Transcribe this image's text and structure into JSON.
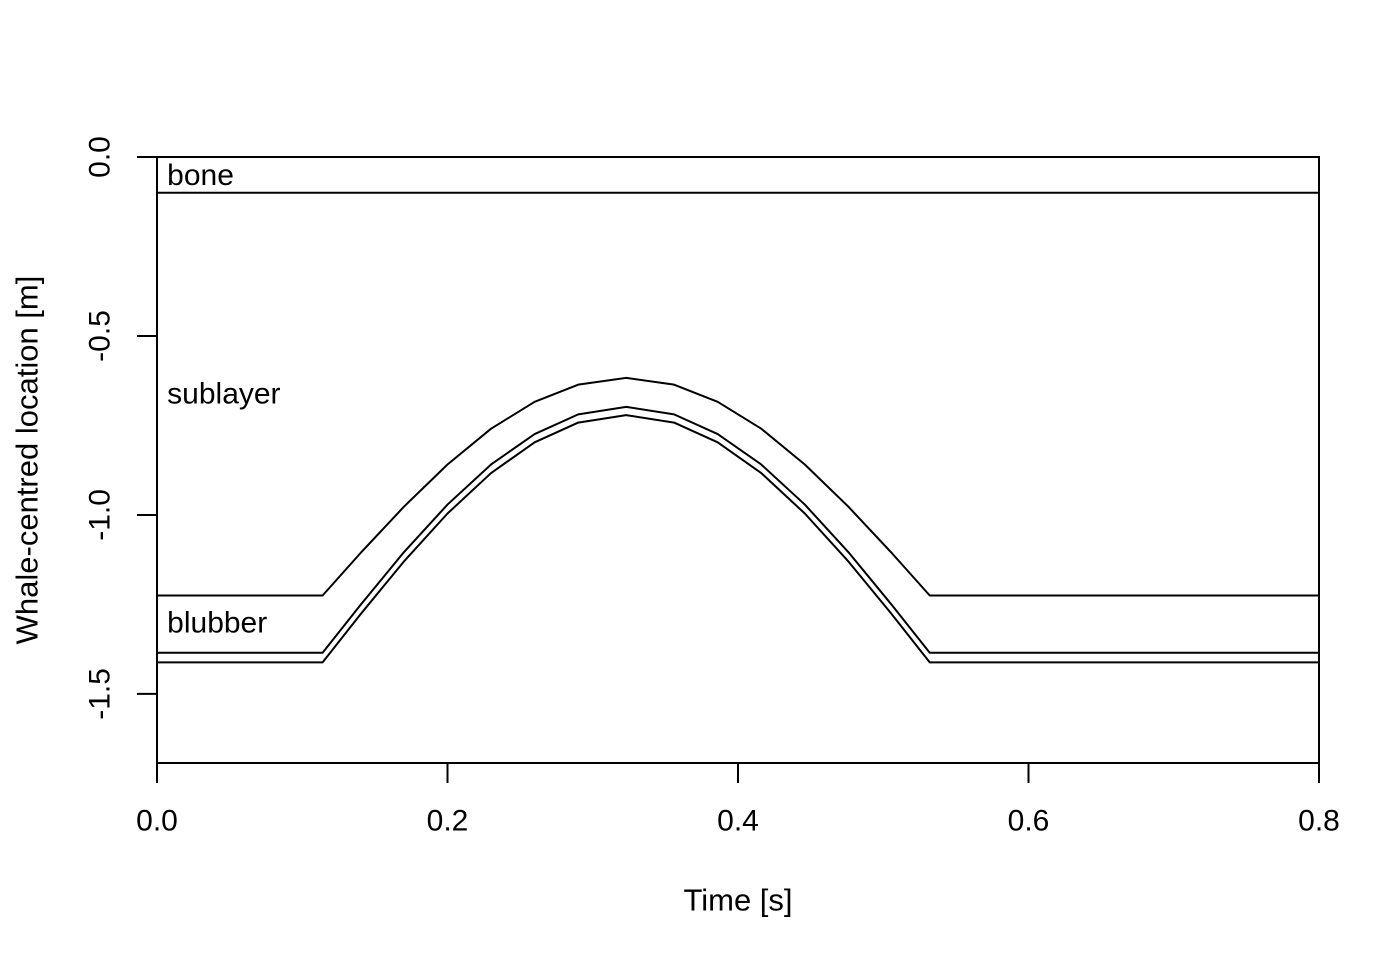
{
  "figure": {
    "background": "#ffffff",
    "line_color": "#000000"
  },
  "chart_data": {
    "type": "line",
    "title": "",
    "xlabel": "Time [s]",
    "ylabel": "Whale-centred location [m]",
    "xlim": [
      0.0,
      0.8
    ],
    "ylim": [
      -1.693,
      0.0
    ],
    "grid": false,
    "legend": false,
    "box": true,
    "x_ticks": {
      "values": [
        0.0,
        0.2,
        0.4,
        0.6,
        0.8
      ],
      "labels": [
        "0.0",
        "0.2",
        "0.4",
        "0.6",
        "0.8"
      ]
    },
    "y_ticks": {
      "values": [
        0.0,
        -0.5,
        -1.0,
        -1.5
      ],
      "labels": [
        "0.0",
        "-0.5",
        "-1.0",
        "-1.5"
      ]
    },
    "series": [
      {
        "name": "bone-top-boundary",
        "bump": null,
        "points": [
          [
            0.0,
            0.0
          ],
          [
            0.8,
            0.0
          ]
        ]
      },
      {
        "name": "bone-bottom-boundary",
        "bump": null,
        "points": [
          [
            0.0,
            -0.1
          ],
          [
            0.8,
            -0.1
          ]
        ]
      },
      {
        "name": "sublayer-blubber-interface",
        "bump": {
          "base": -1.225,
          "peak": -0.617,
          "t_start": 0.114,
          "t_end": 0.532
        },
        "points": [
          [
            0.0,
            -1.225
          ],
          [
            0.114,
            -1.225
          ],
          [
            0.14,
            -1.107
          ],
          [
            0.17,
            -0.977
          ],
          [
            0.2,
            -0.859
          ],
          [
            0.23,
            -0.759
          ],
          [
            0.26,
            -0.684
          ],
          [
            0.29,
            -0.636
          ],
          [
            0.323,
            -0.617
          ],
          [
            0.356,
            -0.636
          ],
          [
            0.386,
            -0.684
          ],
          [
            0.416,
            -0.759
          ],
          [
            0.446,
            -0.859
          ],
          [
            0.476,
            -0.977
          ],
          [
            0.506,
            -1.107
          ],
          [
            0.532,
            -1.225
          ],
          [
            0.8,
            -1.225
          ]
        ]
      },
      {
        "name": "blubber-outer-interface",
        "bump": {
          "base": -1.385,
          "peak": -0.698,
          "t_start": 0.114,
          "t_end": 0.532
        },
        "points": [
          [
            0.0,
            -1.385
          ],
          [
            0.114,
            -1.385
          ],
          [
            0.14,
            -1.252
          ],
          [
            0.17,
            -1.104
          ],
          [
            0.2,
            -0.971
          ],
          [
            0.23,
            -0.859
          ],
          [
            0.26,
            -0.774
          ],
          [
            0.29,
            -0.719
          ],
          [
            0.323,
            -0.698
          ],
          [
            0.356,
            -0.719
          ],
          [
            0.386,
            -0.774
          ],
          [
            0.416,
            -0.859
          ],
          [
            0.446,
            -0.971
          ],
          [
            0.476,
            -1.104
          ],
          [
            0.506,
            -1.252
          ],
          [
            0.532,
            -1.385
          ],
          [
            0.8,
            -1.385
          ]
        ]
      },
      {
        "name": "outer-surface",
        "bump": {
          "base": -1.412,
          "peak": -0.721,
          "t_start": 0.114,
          "t_end": 0.532
        },
        "points": [
          [
            0.0,
            -1.412
          ],
          [
            0.114,
            -1.412
          ],
          [
            0.14,
            -1.278
          ],
          [
            0.17,
            -1.13
          ],
          [
            0.2,
            -0.996
          ],
          [
            0.23,
            -0.883
          ],
          [
            0.26,
            -0.797
          ],
          [
            0.29,
            -0.742
          ],
          [
            0.323,
            -0.721
          ],
          [
            0.356,
            -0.742
          ],
          [
            0.386,
            -0.797
          ],
          [
            0.416,
            -0.883
          ],
          [
            0.446,
            -0.996
          ],
          [
            0.476,
            -1.13
          ],
          [
            0.506,
            -1.278
          ],
          [
            0.532,
            -1.412
          ],
          [
            0.8,
            -1.412
          ]
        ]
      }
    ],
    "annotations": [
      {
        "text": "bone",
        "t": 0.007,
        "z": -0.051
      },
      {
        "text": "sublayer",
        "t": 0.007,
        "z": -0.662
      },
      {
        "text": "blubber",
        "t": 0.007,
        "z": -1.302
      }
    ]
  }
}
